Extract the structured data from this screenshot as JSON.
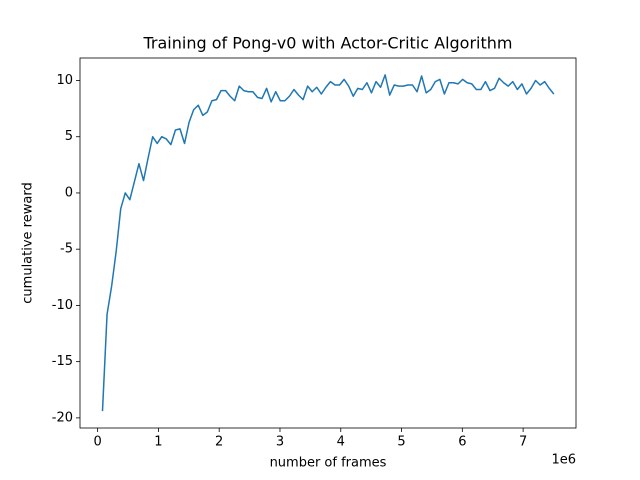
{
  "chart_data": {
    "type": "line",
    "title": "Training of Pong-v0 with Actor-Critic Algorithm",
    "x_label": "number of frames",
    "y_label": "cumulative reward",
    "x_offset_label": "1e6",
    "color": "#1f77b4",
    "x": [
      0.08,
      0.155,
      0.23,
      0.305,
      0.38,
      0.455,
      0.53,
      0.605,
      0.68,
      0.755,
      0.83,
      0.905,
      0.98,
      1.055,
      1.13,
      1.205,
      1.28,
      1.355,
      1.43,
      1.505,
      1.58,
      1.655,
      1.73,
      1.805,
      1.88,
      1.955,
      2.03,
      2.105,
      2.18,
      2.255,
      2.33,
      2.405,
      2.48,
      2.555,
      2.63,
      2.705,
      2.78,
      2.855,
      2.93,
      3.005,
      3.08,
      3.155,
      3.23,
      3.305,
      3.38,
      3.455,
      3.53,
      3.605,
      3.68,
      3.755,
      3.83,
      3.905,
      3.98,
      4.055,
      4.13,
      4.205,
      4.28,
      4.355,
      4.43,
      4.505,
      4.58,
      4.655,
      4.73,
      4.805,
      4.88,
      4.955,
      5.03,
      5.105,
      5.18,
      5.255,
      5.33,
      5.405,
      5.48,
      5.555,
      5.63,
      5.705,
      5.78,
      5.855,
      5.93,
      6.005,
      6.08,
      6.155,
      6.23,
      6.305,
      6.38,
      6.455,
      6.53,
      6.605,
      6.68,
      6.755,
      6.83,
      6.905,
      6.98,
      7.055,
      7.13,
      7.205,
      7.28,
      7.355,
      7.43,
      7.505
    ],
    "values": [
      -19.4,
      -10.8,
      -8.3,
      -5.2,
      -1.4,
      0.0,
      -0.6,
      1.0,
      2.6,
      1.1,
      3.1,
      5.0,
      4.4,
      5.0,
      4.8,
      4.3,
      5.6,
      5.7,
      4.4,
      6.3,
      7.4,
      7.8,
      6.9,
      7.2,
      8.2,
      8.3,
      9.1,
      9.1,
      8.6,
      8.2,
      9.5,
      9.1,
      9.0,
      9.0,
      8.5,
      8.4,
      9.3,
      8.1,
      9.0,
      8.2,
      8.2,
      8.6,
      9.2,
      8.7,
      8.3,
      9.5,
      9.0,
      9.4,
      8.8,
      9.4,
      9.9,
      9.6,
      9.6,
      10.1,
      9.5,
      8.6,
      9.3,
      9.2,
      9.8,
      8.9,
      9.9,
      9.4,
      10.5,
      8.7,
      9.6,
      9.5,
      9.5,
      9.6,
      9.6,
      9.0,
      10.4,
      8.9,
      9.2,
      9.9,
      10.1,
      8.8,
      9.8,
      9.8,
      9.7,
      10.1,
      9.8,
      9.7,
      9.2,
      9.2,
      9.9,
      9.1,
      9.3,
      10.2,
      9.8,
      9.5,
      9.9,
      9.2,
      9.7,
      8.8,
      9.3,
      10.0,
      9.6,
      9.9,
      9.3,
      8.8
    ],
    "xlim": [
      -0.29,
      7.87
    ],
    "ylim": [
      -20.9,
      12.0
    ],
    "xticks": [
      0,
      1,
      2,
      3,
      4,
      5,
      6,
      7
    ],
    "yticks": [
      -20,
      -15,
      -10,
      -5,
      0,
      5,
      10
    ],
    "grid": false
  }
}
